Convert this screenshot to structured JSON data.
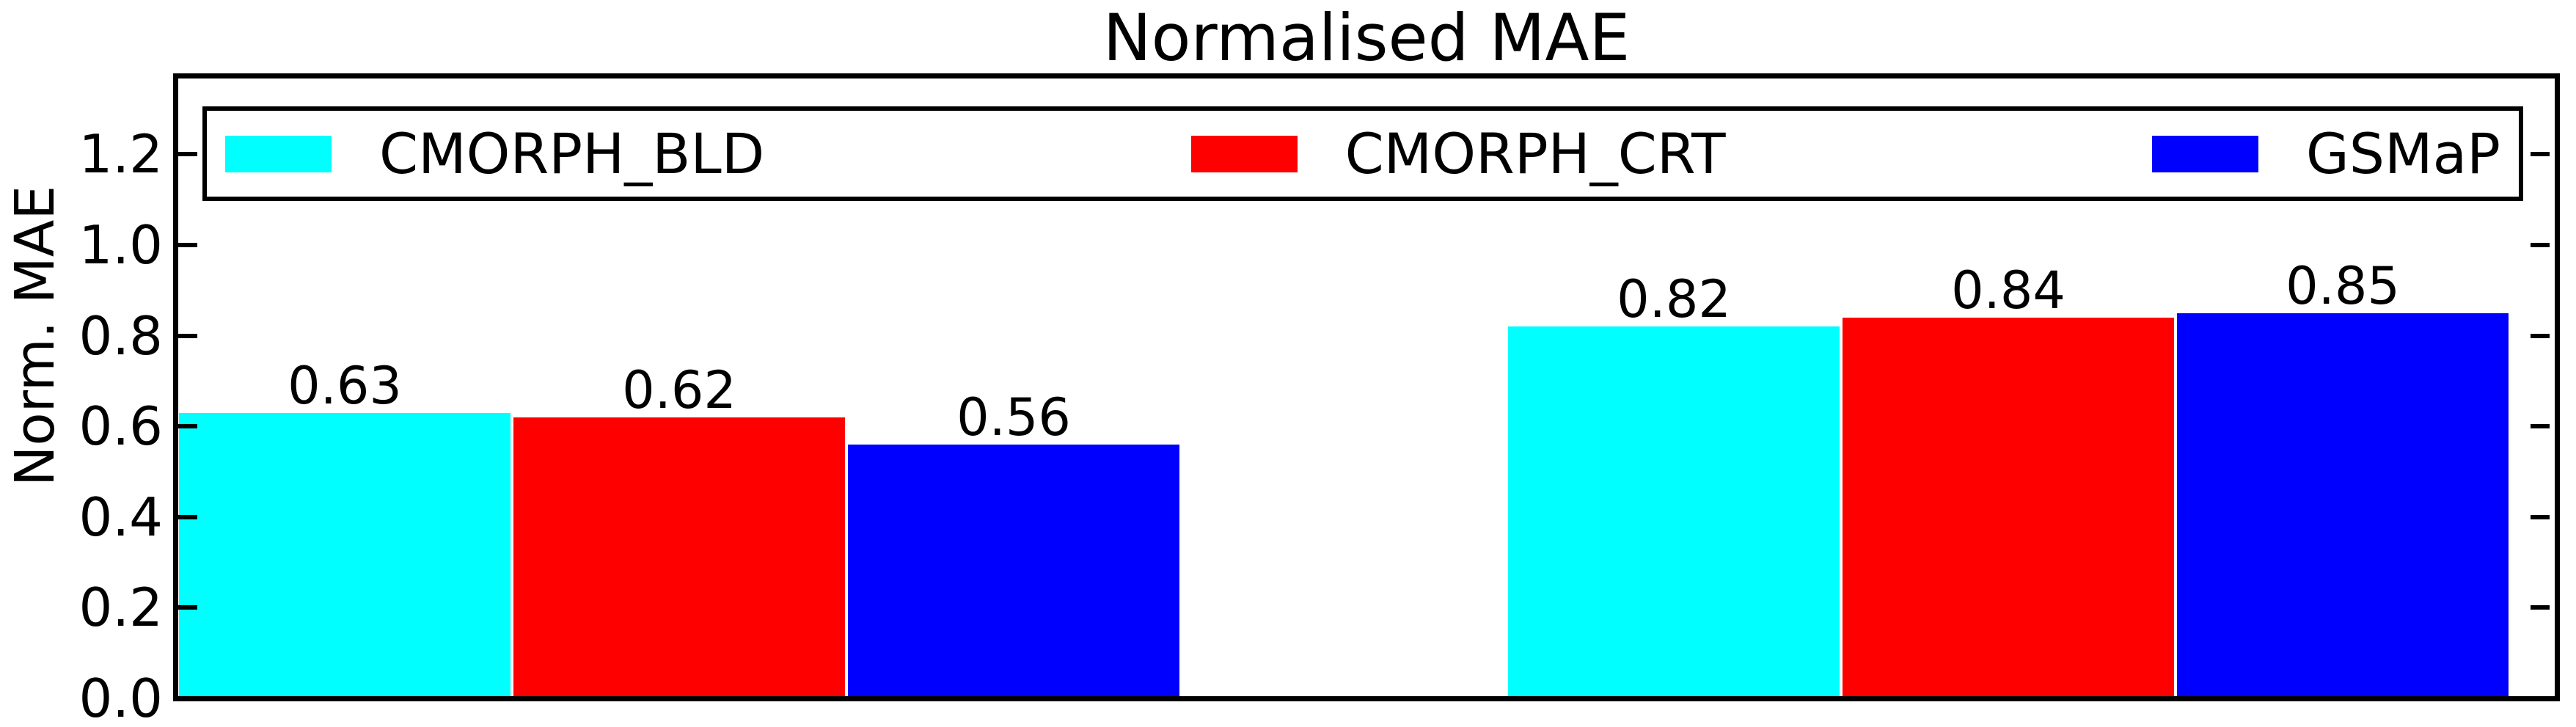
{
  "chart_data": {
    "type": "bar",
    "title": "Normalised MAE",
    "ylabel": "Norm. MAE",
    "xlabel": "",
    "categories": [
      "",
      ""
    ],
    "series": [
      {
        "name": "CMORPH_BLD",
        "color": "#00ffff",
        "values": [
          0.63,
          0.82
        ],
        "labels": [
          "0.63",
          "0.82"
        ]
      },
      {
        "name": "CMORPH_CRT",
        "color": "#ff0000",
        "values": [
          0.62,
          0.84
        ],
        "labels": [
          "0.62",
          "0.84"
        ]
      },
      {
        "name": "GSMaP",
        "color": "#0000ff",
        "values": [
          0.56,
          0.85
        ],
        "labels": [
          "0.56",
          "0.85"
        ]
      }
    ],
    "ytick_labels": [
      "0.0",
      "0.2",
      "0.4",
      "0.6",
      "0.8",
      "1.0",
      "1.2"
    ],
    "ytick_values": [
      0.0,
      0.2,
      0.4,
      0.6,
      0.8,
      1.0,
      1.2
    ],
    "ylim": [
      0,
      1.37
    ],
    "grid": false,
    "value_labels": true,
    "legend": {
      "position": "upper center",
      "ncol": 3,
      "entries": [
        "CMORPH_BLD",
        "CMORPH_CRT",
        "GSMaP"
      ]
    },
    "axis_color": "#000000",
    "background_color": "#ffffff"
  }
}
